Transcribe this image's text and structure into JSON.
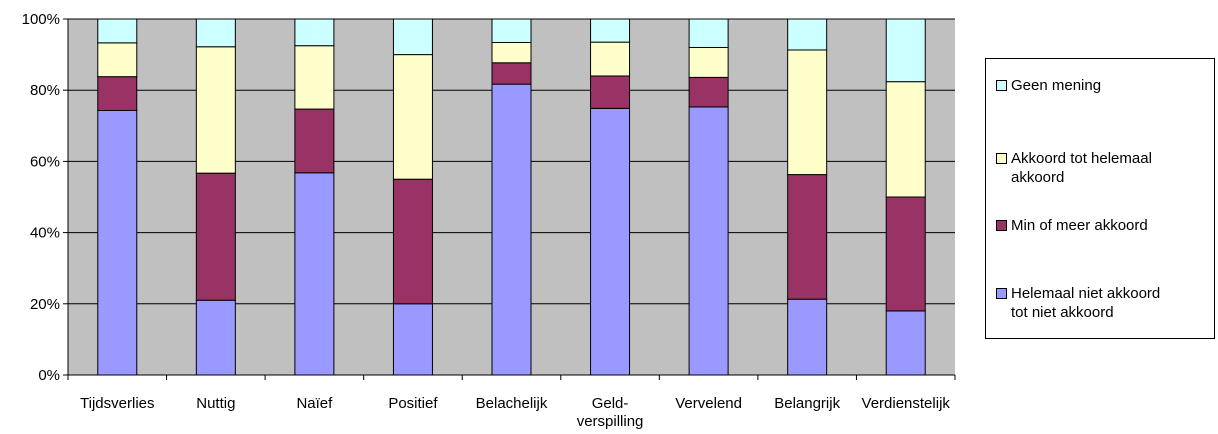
{
  "chart_data": {
    "type": "bar",
    "stacked": true,
    "percent": true,
    "categories": [
      "Tijdsverlies",
      "Nuttig",
      "Naïef",
      "Positief",
      "Belachelijk",
      "Geld-verspilling",
      "Vervelend",
      "Belangrijk",
      "Verdienstelijk"
    ],
    "category_lines": [
      [
        "Tijdsverlies"
      ],
      [
        "Nuttig"
      ],
      [
        "Naïef"
      ],
      [
        "Positief"
      ],
      [
        "Belachelijk"
      ],
      [
        "Geld-",
        "verspilling"
      ],
      [
        "Vervelend"
      ],
      [
        "Belangrijk"
      ],
      [
        "Verdienstelijk"
      ]
    ],
    "series": [
      {
        "name": "Helemaal niet akkoord tot niet akkoord",
        "color": "#9999ff",
        "values": [
          74.3,
          21.0,
          56.8,
          20.0,
          81.7,
          74.9,
          75.3,
          21.3,
          18.0
        ]
      },
      {
        "name": "Min of meer akkoord",
        "color": "#993366",
        "values": [
          9.5,
          35.7,
          17.9,
          35.0,
          6.0,
          9.1,
          8.3,
          35.0,
          32.0
        ]
      },
      {
        "name": "Akkoord tot helemaal akkoord",
        "color": "#ffffcc",
        "values": [
          9.5,
          35.5,
          17.8,
          35.0,
          5.7,
          9.5,
          8.4,
          35.0,
          32.4
        ]
      },
      {
        "name": "Geen mening",
        "color": "#ccffff",
        "values": [
          6.7,
          7.8,
          7.5,
          10.0,
          6.6,
          6.5,
          8.0,
          8.7,
          17.6
        ]
      }
    ],
    "yticks": [
      "0%",
      "20%",
      "40%",
      "60%",
      "80%",
      "100%"
    ],
    "ylim": [
      0,
      100
    ],
    "plot_background": "#c0c0c0",
    "legend_order": [
      3,
      2,
      1,
      0
    ],
    "legend_lines": [
      [
        "Geen mening"
      ],
      [
        "Akkoord tot helemaal",
        "akkoord"
      ],
      [
        "Min of meer akkoord"
      ],
      [
        "Helemaal niet akkoord",
        "tot niet akkoord"
      ]
    ],
    "legend_position": "right",
    "title": "",
    "xlabel": "",
    "ylabel": ""
  }
}
